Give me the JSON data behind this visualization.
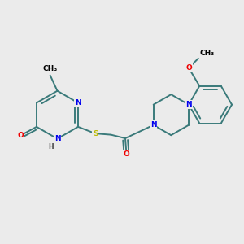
{
  "background_color": "#ebebeb",
  "bond_color": "#3a7a7a",
  "bond_width": 1.4,
  "atom_colors": {
    "N": "#0000ee",
    "O": "#ee0000",
    "S": "#bbbb00",
    "C": "#000000",
    "H": "#333333"
  },
  "font_size": 6.5,
  "figsize": [
    3.0,
    3.0
  ],
  "dpi": 100,
  "xlim": [
    -4.5,
    5.5
  ],
  "ylim": [
    -3.5,
    3.5
  ]
}
